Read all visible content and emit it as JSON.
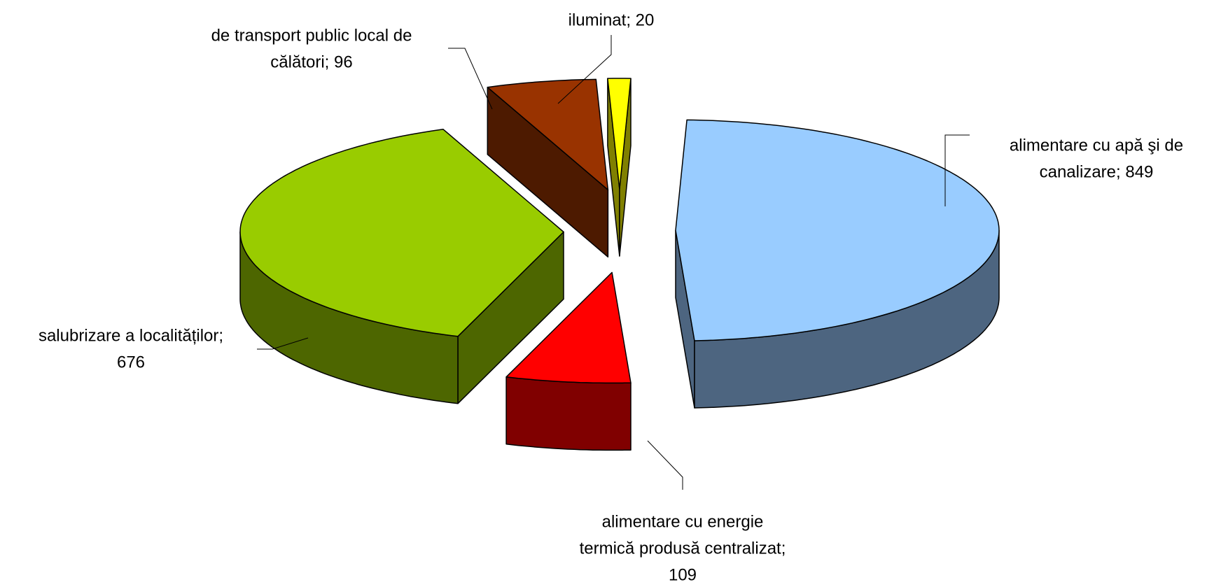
{
  "chart_data": {
    "type": "pie",
    "categories": [
      "alimentare cu apă şi de canalizare",
      "alimentare cu energie termică produsă centralizat",
      "salubrizare a localităţilor",
      "de transport public local de călători",
      "iluminat"
    ],
    "values": [
      849,
      109,
      676,
      96,
      20
    ],
    "value_labels": [
      [
        "alimentare cu apă şi de",
        "canalizare; 849"
      ],
      [
        "alimentare cu energie",
        "termică produsă centralizat;",
        "109"
      ],
      [
        "salubrizare a localităților;",
        "676"
      ],
      [
        "de transport public local de",
        "călători; 96"
      ],
      [
        "iluminat; 20"
      ]
    ],
    "colors": [
      "#99ccff",
      "#ff0000",
      "#99cc00",
      "#993300",
      "#ffff00"
    ],
    "side_colors": [
      "#4d6580",
      "#800000",
      "#4d6600",
      "#4d1a00",
      "#808000"
    ]
  }
}
